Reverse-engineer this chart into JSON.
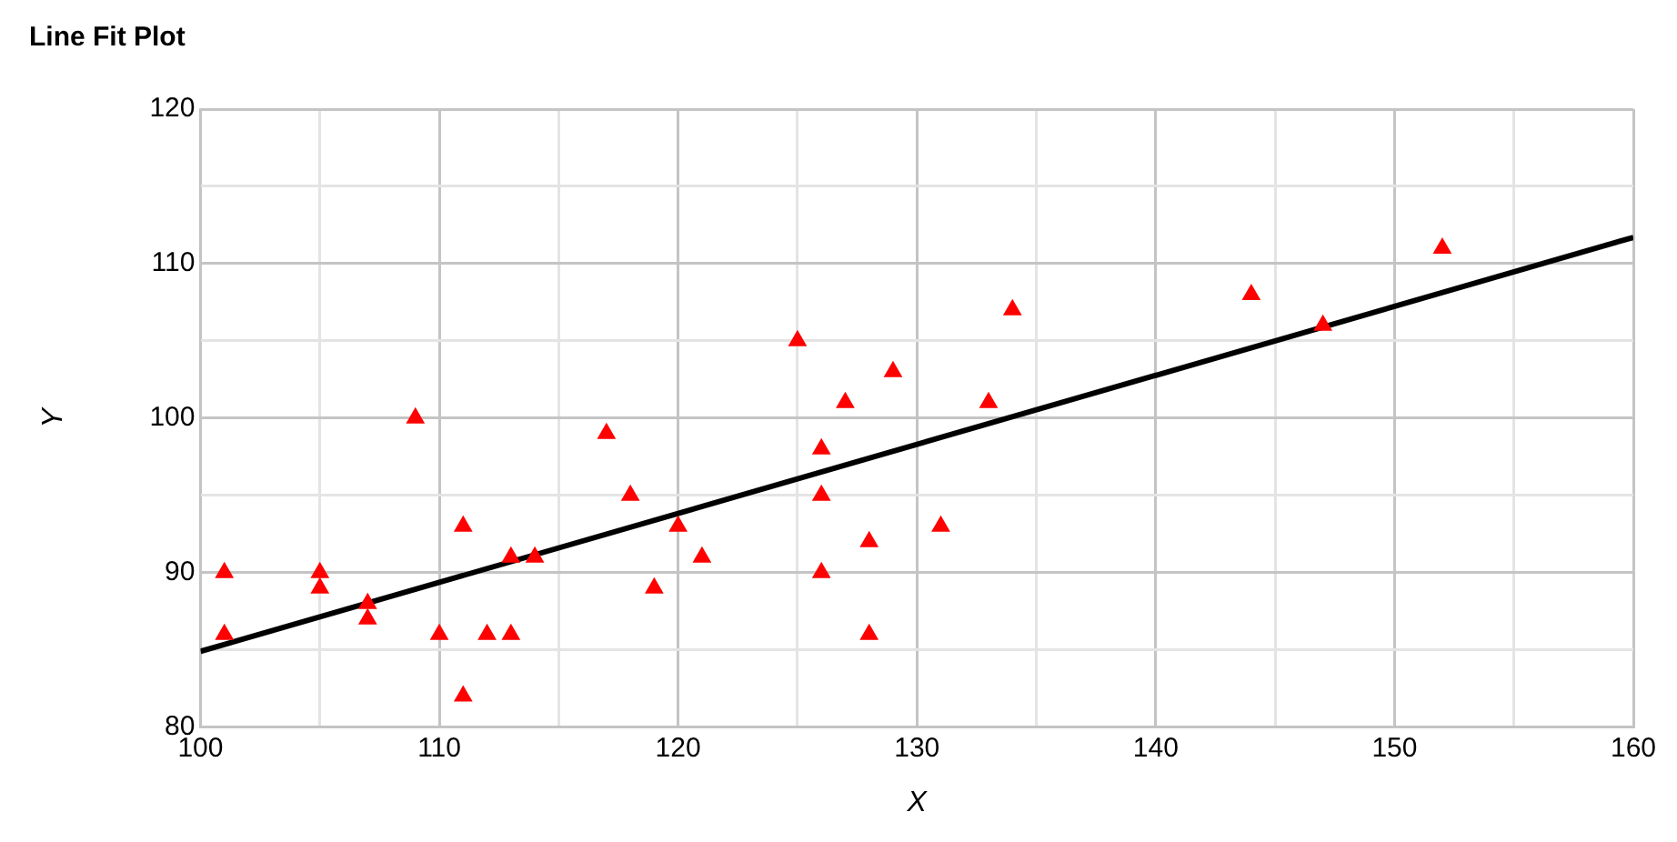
{
  "chart_data": {
    "type": "scatter",
    "title": "Line Fit Plot",
    "xlabel": "X",
    "ylabel": "Y",
    "grid": true,
    "legend": false,
    "xlim": [
      100,
      160
    ],
    "xticks": [
      100,
      {
        "value": 105,
        "label": null
      },
      110,
      {
        "value": 115,
        "label": null
      },
      120,
      {
        "value": 125,
        "label": null
      },
      130,
      {
        "value": 135,
        "label": null
      },
      140,
      {
        "value": 145,
        "label": null
      },
      150,
      {
        "value": 155,
        "label": null
      },
      160
    ],
    "ylim": [
      80,
      120
    ],
    "yticks": [
      80,
      {
        "value": 85,
        "label": null
      },
      90,
      {
        "value": 95,
        "label": null
      },
      100,
      {
        "value": 105,
        "label": null
      },
      110,
      {
        "value": 115,
        "label": null
      },
      120
    ],
    "series": [
      {
        "marker": "triangle",
        "color": "#ff0000",
        "x": [
          101,
          101,
          105,
          105,
          107,
          107,
          109,
          110,
          111,
          111,
          112,
          113,
          113,
          114,
          117,
          118,
          119,
          120,
          121,
          125,
          126,
          126,
          126,
          127,
          128,
          128,
          129,
          131,
          133,
          134,
          144,
          147,
          152
        ],
        "values": [
          90,
          86,
          90,
          89,
          88,
          87,
          100,
          86,
          93,
          82,
          86,
          86,
          91,
          91,
          99,
          95,
          89,
          93,
          91,
          105,
          98,
          95,
          90,
          101,
          92,
          86,
          103,
          93,
          101,
          107,
          108,
          106,
          111
        ]
      },
      {
        "type": "line",
        "marker": "none",
        "color": "#000000",
        "x": [
          100,
          160
        ],
        "values": [
          84.9,
          111.7
        ]
      }
    ]
  }
}
